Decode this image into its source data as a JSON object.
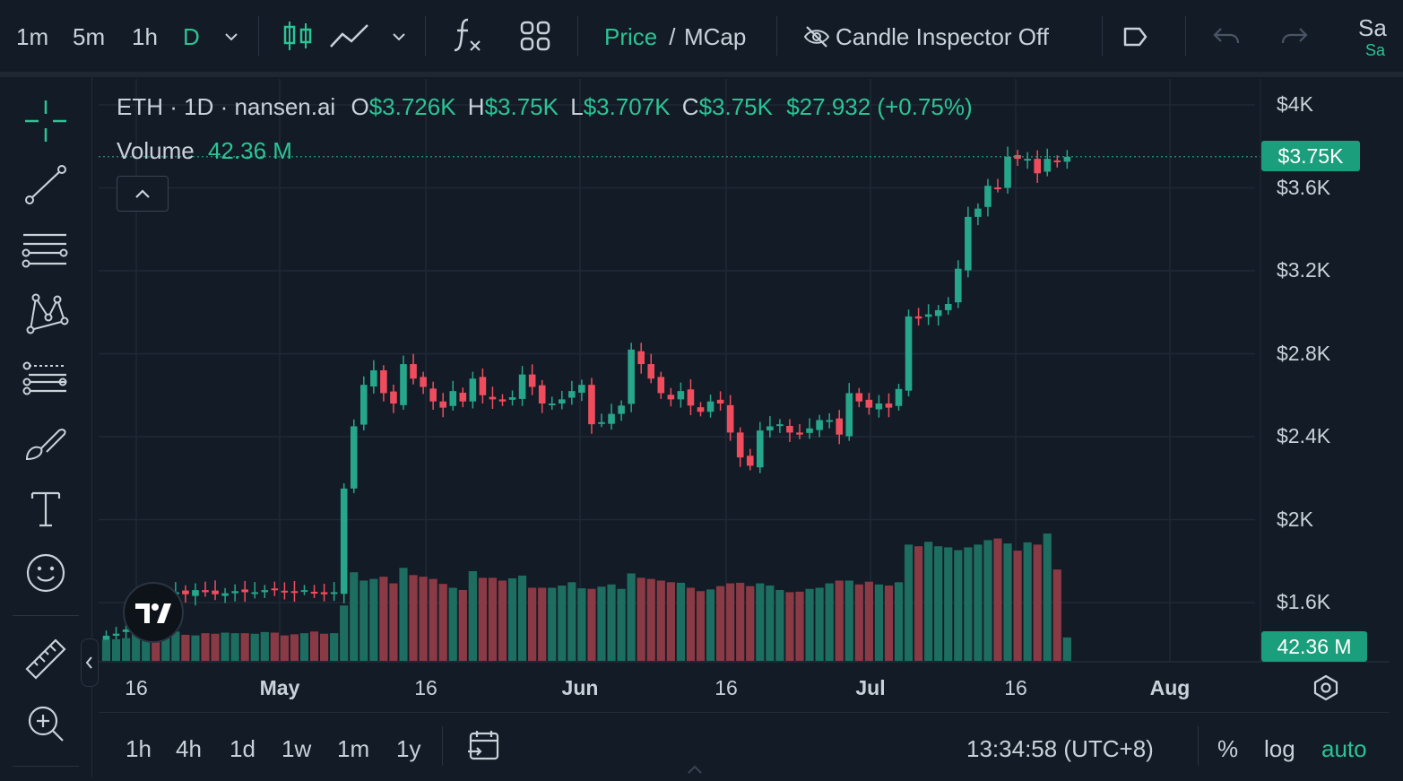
{
  "toolbar": {
    "intervals": [
      "1m",
      "5m",
      "1h",
      "D"
    ],
    "active_interval": "D",
    "price_label": "Price",
    "price_sep": " / ",
    "mcap_label": "MCap",
    "candle_inspector": "Candle Inspector Off",
    "save_label": "Sa",
    "save_sub": "Sa",
    "icons": [
      "chevron-down-icon",
      "candles-icon",
      "line-chart-icon",
      "indicators-icon",
      "layout-grid-icon",
      "eye-off-icon",
      "tag-icon",
      "undo-icon",
      "redo-icon"
    ]
  },
  "sidebar": {
    "tools": [
      "crosshair-icon",
      "trend-line-icon",
      "fib-lines-icon",
      "pattern-icon",
      "projection-icon",
      "brush-icon",
      "text-icon",
      "emoji-icon",
      "ruler-icon",
      "zoom-in-icon"
    ]
  },
  "legend": {
    "symbol": "ETH · 1D · nansen.ai",
    "o_label": "O",
    "o_value": "$3.726K",
    "h_label": "H",
    "h_value": "$3.75K",
    "l_label": "L",
    "l_value": "$3.707K",
    "c_label": "C",
    "c_value": "$3.75K",
    "change": "$27.932 (+0.75%)",
    "volume_label": "Volume",
    "volume_value": "42.36 M"
  },
  "price_axis": {
    "ticks": [
      "$4K",
      "$3.6K",
      "$3.2K",
      "$2.8K",
      "$2.4K",
      "$2K",
      "$1.6K"
    ],
    "last_price_tag": "$3.75K",
    "volume_tag": "42.36 M"
  },
  "time_axis": {
    "ticks": [
      "16",
      "May",
      "16",
      "Jun",
      "16",
      "Jul",
      "16",
      "Aug"
    ]
  },
  "bottom": {
    "ranges": [
      "1h",
      "4h",
      "1d",
      "1w",
      "1m",
      "1y"
    ],
    "clock": "13:34:58 (UTC+8)",
    "percent": "%",
    "log": "log",
    "auto": "auto"
  },
  "colors": {
    "up": "#26a68a",
    "down": "#ef4d5d",
    "accent": "#2bc495",
    "bg": "#131b26"
  },
  "chart_data": {
    "type": "candlestick",
    "price_range": [
      1350,
      4050
    ],
    "candles_ohlc_close": [
      1440,
      1450,
      1470,
      1620,
      1630,
      1630,
      1640,
      1650,
      1640,
      1660,
      1650,
      1640,
      1645,
      1655,
      1650,
      1650,
      1660,
      1665,
      1655,
      1650,
      1660,
      1650,
      1640,
      1650,
      2150,
      2450,
      2650,
      2720,
      2610,
      2560,
      2750,
      2680,
      2640,
      2570,
      2540,
      2620,
      2570,
      2680,
      2600,
      2580,
      2570,
      2590,
      2700,
      2640,
      2560,
      2560,
      2580,
      2620,
      2650,
      2460,
      2470,
      2510,
      2550,
      2820,
      2750,
      2680,
      2610,
      2580,
      2620,
      2550,
      2520,
      2570,
      2560,
      2420,
      2300,
      2260,
      2430,
      2450,
      2460,
      2420,
      2410,
      2440,
      2480,
      2480,
      2410,
      2610,
      2570,
      2540,
      2560,
      2540,
      2630,
      2980,
      2970,
      2990,
      3010,
      3040,
      3210,
      3460,
      3500,
      3610,
      3600,
      3750,
      3740,
      3740,
      3670,
      3740,
      3726,
      3750
    ],
    "volume_M": [
      38,
      39,
      41,
      48,
      45,
      52,
      50,
      53,
      47,
      46,
      50,
      49,
      51,
      50,
      50,
      49,
      52,
      51,
      46,
      48,
      50,
      53,
      49,
      50,
      100,
      160,
      145,
      148,
      152,
      140,
      168,
      155,
      152,
      148,
      139,
      132,
      128,
      162,
      150,
      150,
      145,
      149,
      154,
      132,
      132,
      132,
      136,
      142,
      131,
      130,
      134,
      138,
      130,
      158,
      150,
      148,
      145,
      142,
      141,
      132,
      126,
      129,
      135,
      140,
      141,
      135,
      140,
      136,
      128,
      124,
      125,
      130,
      132,
      140,
      145,
      145,
      138,
      143,
      138,
      136,
      142,
      210,
      207,
      215,
      207,
      205,
      200,
      205,
      210,
      218,
      221,
      212,
      199,
      214,
      210,
      230,
      165,
      42.36
    ]
  }
}
